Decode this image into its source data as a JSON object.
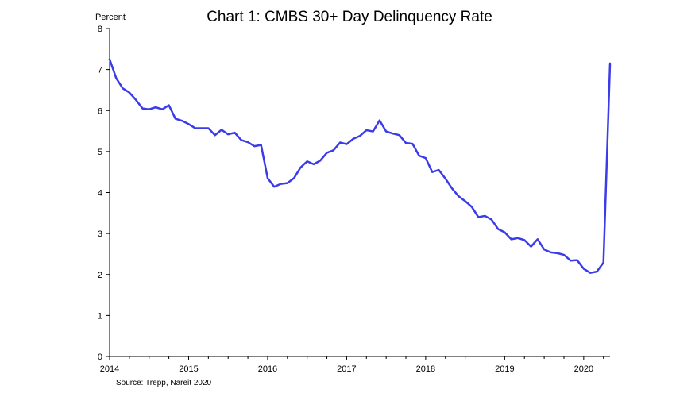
{
  "chart_data": {
    "type": "line",
    "title": "Chart 1: CMBS 30+ Day Delinquency Rate",
    "y_unit_label": "Percent",
    "source": "Source: Trepp, Nareit 2020",
    "x_axis": {
      "tick_labels": [
        "2014",
        "2015",
        "2016",
        "2017",
        "2018",
        "2019",
        "2020"
      ],
      "range": [
        "2014-01",
        "2020-05"
      ]
    },
    "y_axis": {
      "tick_labels": [
        "0",
        "1",
        "2",
        "3",
        "4",
        "5",
        "6",
        "7",
        "8"
      ],
      "range": [
        0,
        8
      ],
      "major_step": 1
    },
    "grid": false,
    "legend": "none",
    "series": [
      {
        "color": "#3b3bea",
        "x": [
          "2014-01",
          "2014-02",
          "2014-03",
          "2014-04",
          "2014-05",
          "2014-06",
          "2014-07",
          "2014-08",
          "2014-09",
          "2014-10",
          "2014-11",
          "2014-12",
          "2015-01",
          "2015-02",
          "2015-03",
          "2015-04",
          "2015-05",
          "2015-06",
          "2015-07",
          "2015-08",
          "2015-09",
          "2015-10",
          "2015-11",
          "2015-12",
          "2016-01",
          "2016-02",
          "2016-03",
          "2016-04",
          "2016-05",
          "2016-06",
          "2016-07",
          "2016-08",
          "2016-09",
          "2016-10",
          "2016-11",
          "2016-12",
          "2017-01",
          "2017-02",
          "2017-03",
          "2017-04",
          "2017-05",
          "2017-06",
          "2017-07",
          "2017-08",
          "2017-09",
          "2017-10",
          "2017-11",
          "2017-12",
          "2018-01",
          "2018-02",
          "2018-03",
          "2018-04",
          "2018-05",
          "2018-06",
          "2018-07",
          "2018-08",
          "2018-09",
          "2018-10",
          "2018-11",
          "2018-12",
          "2019-01",
          "2019-02",
          "2019-03",
          "2019-04",
          "2019-05",
          "2019-06",
          "2019-07",
          "2019-08",
          "2019-09",
          "2019-10",
          "2019-11",
          "2019-12",
          "2020-01",
          "2020-02",
          "2020-03",
          "2020-04",
          "2020-05"
        ],
        "values": [
          7.25,
          6.79,
          6.54,
          6.44,
          6.26,
          6.05,
          6.03,
          6.08,
          6.03,
          6.13,
          5.8,
          5.75,
          5.67,
          5.57,
          5.57,
          5.57,
          5.4,
          5.53,
          5.42,
          5.46,
          5.28,
          5.23,
          5.13,
          5.16,
          4.35,
          4.14,
          4.21,
          4.23,
          4.35,
          4.61,
          4.76,
          4.69,
          4.78,
          4.97,
          5.03,
          5.22,
          5.18,
          5.31,
          5.38,
          5.52,
          5.49,
          5.76,
          5.49,
          5.44,
          5.4,
          5.21,
          5.19,
          4.9,
          4.84,
          4.5,
          4.55,
          4.34,
          4.1,
          3.91,
          3.79,
          3.65,
          3.4,
          3.43,
          3.34,
          3.11,
          3.03,
          2.86,
          2.89,
          2.84,
          2.68,
          2.86,
          2.61,
          2.54,
          2.52,
          2.48,
          2.34,
          2.35,
          2.14,
          2.04,
          2.07,
          2.29,
          7.15
        ]
      }
    ]
  }
}
